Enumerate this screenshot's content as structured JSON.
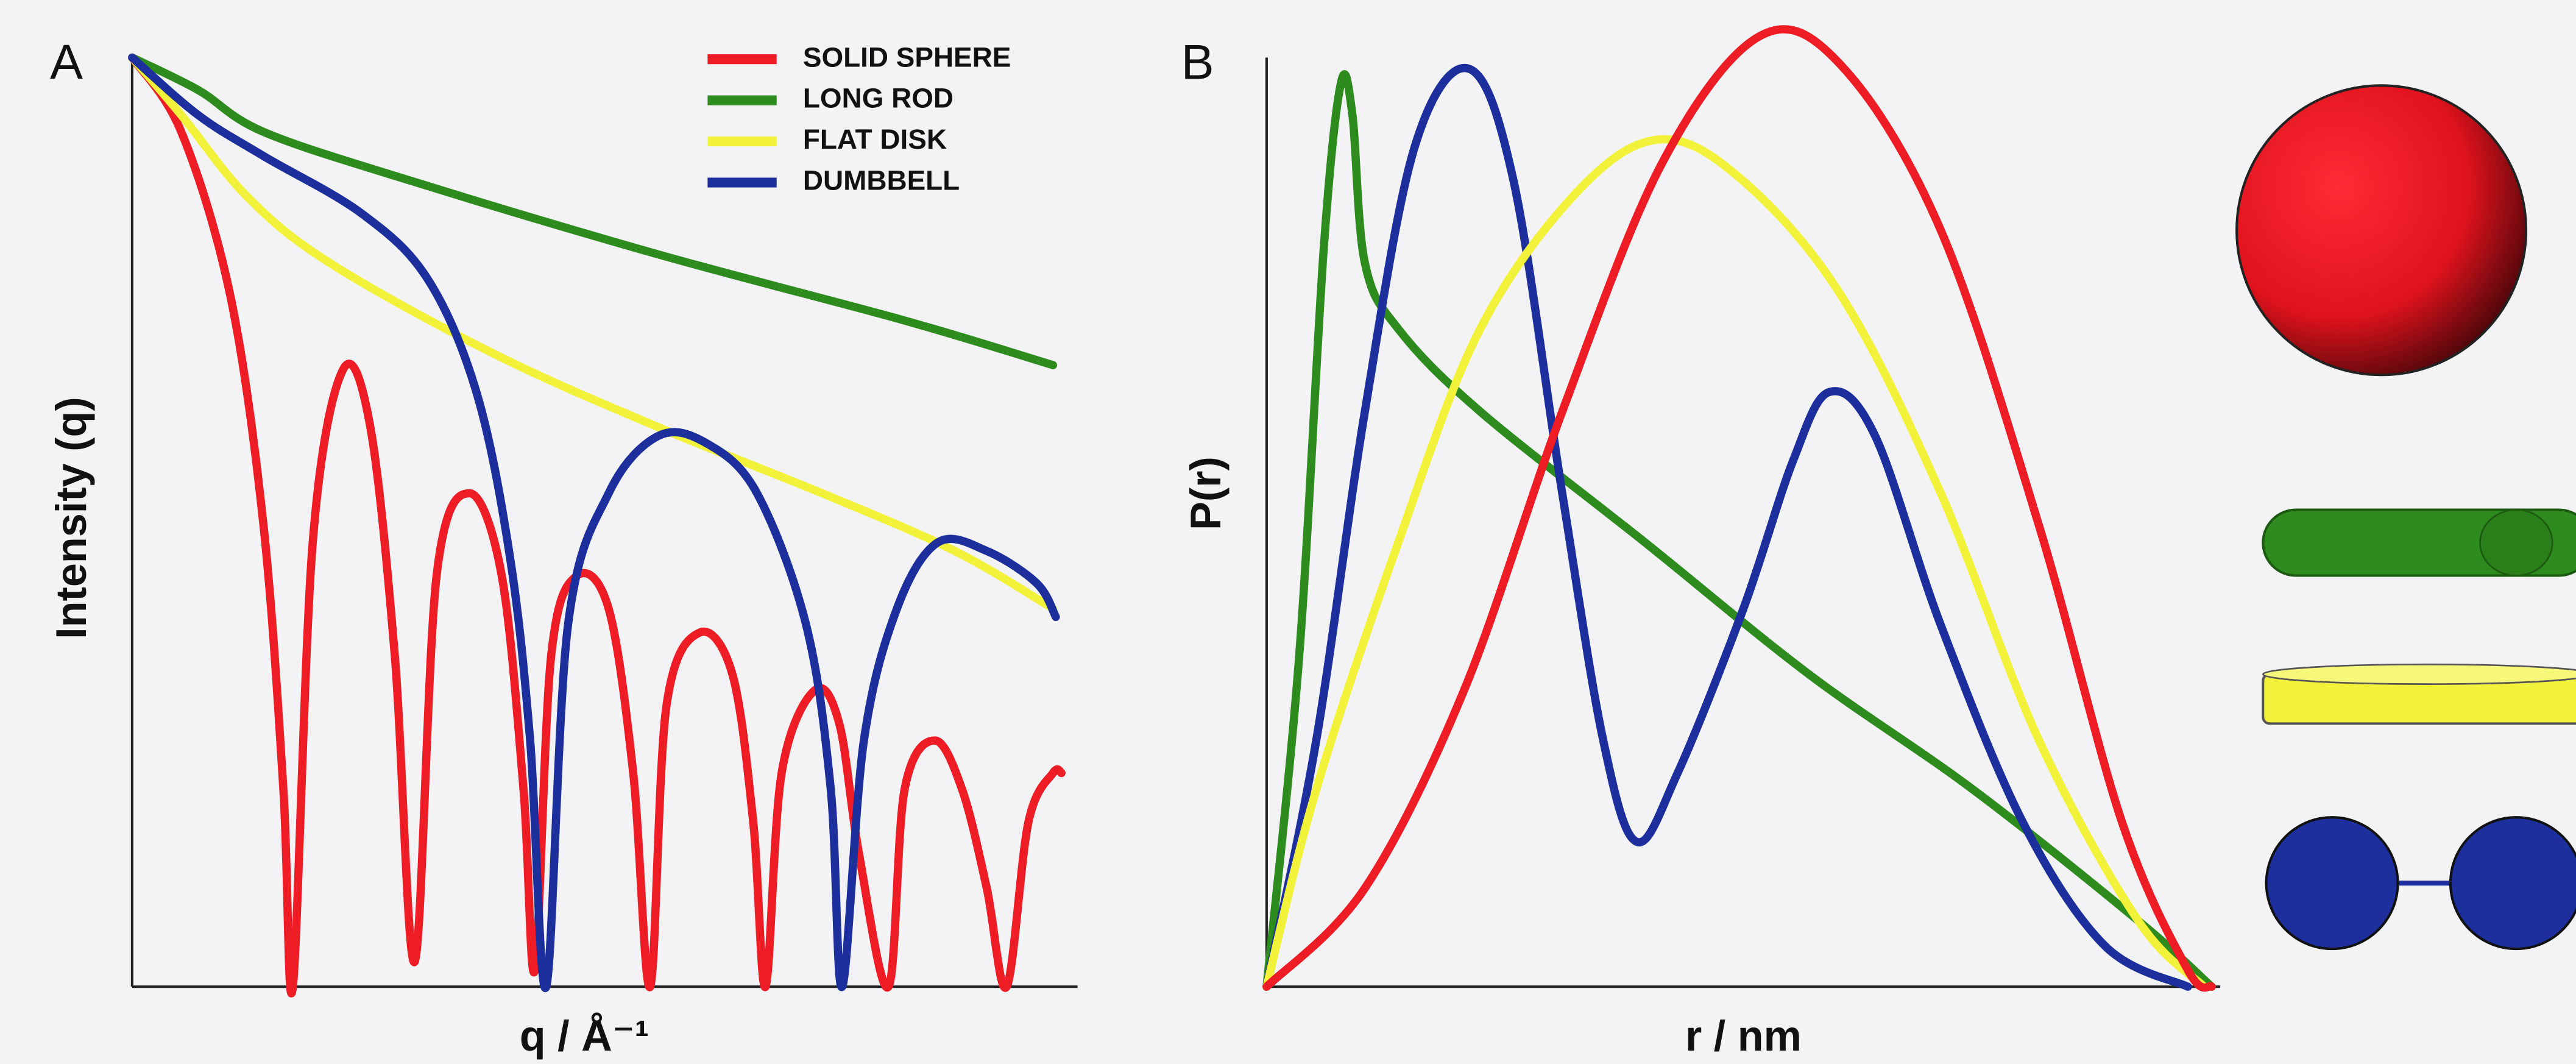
{
  "chart_data": [
    {
      "type": "line",
      "panel_label": "A",
      "xlabel": "q / Å⁻¹",
      "ylabel": "Intensity (q)",
      "xlim": [
        0,
        100
      ],
      "ylim": [
        0,
        100
      ],
      "legend": "upper right",
      "series": [
        {
          "name": "SOLID SPHERE",
          "color": "#ee1c25",
          "x": [
            0,
            5.2,
            10.4,
            13.9,
            16,
            17,
            19.1,
            22.3,
            25.2,
            27.8,
            29.9,
            32.2,
            35.7,
            39.1,
            41.4,
            42.6,
            44.3,
            47,
            50.4,
            53,
            54.8,
            56.5,
            60,
            63.5,
            65.7,
            67,
            68.7,
            72.2,
            74.8,
            76.9,
            80,
            81.7,
            84.9,
            87.8,
            90.4,
            92.5,
            94.8,
            97.4,
            98.3
          ],
          "values": [
            100,
            92,
            74.3,
            49.6,
            21.2,
            0,
            47.8,
            66.4,
            60.2,
            35.4,
            2.7,
            44.2,
            53.1,
            44.2,
            21.2,
            1.8,
            35.4,
            44.2,
            40.7,
            23,
            0,
            30.1,
            38.1,
            33.6,
            17.7,
            0,
            23,
            31.9,
            28.3,
            14.2,
            0,
            21.2,
            26.5,
            21.2,
            10.6,
            0,
            17.7,
            23,
            23
          ]
        },
        {
          "name": "LONG ROD",
          "color": "#2e8b1e",
          "x": [
            0,
            7,
            13.9,
            29.6,
            55.7,
            81.7,
            97.4
          ],
          "values": [
            100,
            96.5,
            92,
            86.7,
            78.8,
            71.7,
            66.9
          ]
        },
        {
          "name": "FLAT DISK",
          "color": "#f2f23a",
          "x": [
            0,
            5.2,
            12.2,
            20.9,
            38.3,
            55.7,
            73,
            87,
            97.4
          ],
          "values": [
            100,
            93.8,
            85,
            77.9,
            68.1,
            60.2,
            53.1,
            46.9,
            40.7
          ]
        },
        {
          "name": "DUMBBELL",
          "color": "#1c2f9c",
          "x": [
            0,
            7,
            13.9,
            24.3,
            31.3,
            36.5,
            40,
            42.1,
            43.8,
            46.1,
            50.4,
            55.7,
            60.9,
            66.1,
            71.3,
            73.9,
            75.1,
            77.4,
            80.9,
            85.2,
            90.4,
            95.7,
            97.7
          ],
          "values": [
            100,
            93.8,
            89.4,
            83.2,
            76.1,
            63.7,
            46,
            26.5,
            0,
            38.9,
            53.1,
            59.3,
            58.4,
            53.1,
            38.9,
            21.2,
            0,
            26.5,
            40.7,
            47.8,
            46.9,
            43.4,
            39.8
          ]
        }
      ]
    },
    {
      "type": "line",
      "panel_label": "B",
      "xlabel": "r / nm",
      "ylabel": "P(r)",
      "xlim": [
        0,
        100
      ],
      "ylim": [
        0,
        100
      ],
      "series": [
        {
          "color": "#2e8b1e",
          "x": [
            0,
            3.4,
            6,
            7.8,
            9,
            10.3,
            13.8,
            22.4,
            39.7,
            56.9,
            74.1,
            91.4,
            99.1
          ],
          "values": [
            0,
            35.4,
            79.6,
            97.3,
            93.8,
            77.9,
            70.8,
            61.9,
            47.8,
            33.6,
            21.2,
            7.1,
            0
          ]
        },
        {
          "color": "#1c2f9c",
          "x": [
            0,
            5.2,
            10.3,
            15.5,
            21.2,
            25.9,
            31,
            35.3,
            38.8,
            43.1,
            50,
            55.2,
            59,
            63.8,
            70.7,
            79.3,
            87.9,
            96.6
          ],
          "values": [
            0,
            26.5,
            61.9,
            90.3,
            98.8,
            86.7,
            53.1,
            26.5,
            15.6,
            23,
            40.7,
            56.6,
            64,
            59.3,
            38.9,
            17.7,
            4.4,
            0
          ]
        },
        {
          "color": "#f2f23a",
          "x": [
            0,
            5.2,
            13.8,
            22.4,
            32.8,
            41.4,
            50,
            60.3,
            70.7,
            81,
            91.4,
            98.3
          ],
          "values": [
            0,
            21.2,
            47.8,
            70.8,
            85.8,
            91.2,
            86.7,
            74.3,
            53.1,
            26.5,
            7.1,
            0
          ]
        },
        {
          "color": "#ee1c25",
          "x": [
            0,
            10.3,
            20.7,
            31,
            41.4,
            51.7,
            60.3,
            70.7,
            81,
            89.7,
            96.6,
            99.1
          ],
          "values": [
            0,
            10.6,
            31.9,
            61.9,
            88.5,
            102.3,
            99.1,
            81.4,
            49.6,
            17.7,
            1.8,
            0
          ]
        }
      ]
    }
  ]
}
